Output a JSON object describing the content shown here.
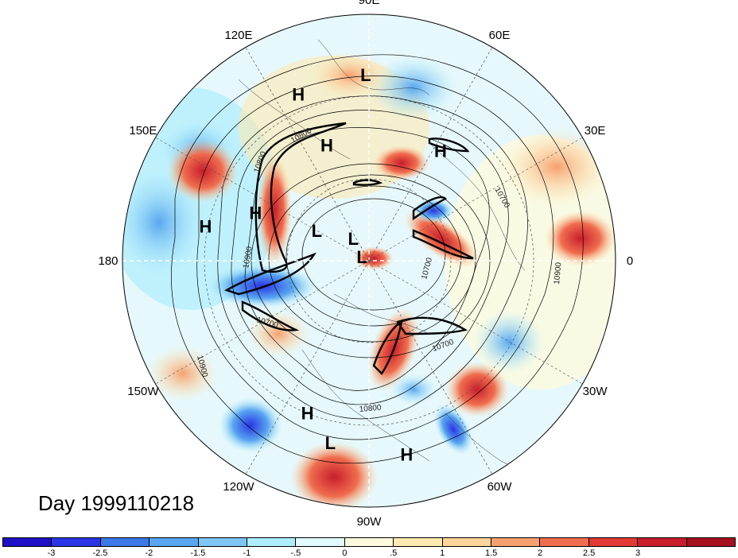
{
  "title": "Day 1999110218",
  "longitude_labels": [
    {
      "text": "90E",
      "lon": 90
    },
    {
      "text": "60E",
      "lon": 60
    },
    {
      "text": "30E",
      "lon": 30
    },
    {
      "text": "0",
      "lon": 0
    },
    {
      "text": "30W",
      "lon": -30
    },
    {
      "text": "60W",
      "lon": -60
    },
    {
      "text": "90W",
      "lon": -90
    },
    {
      "text": "120W",
      "lon": -120
    },
    {
      "text": "150W",
      "lon": -150
    },
    {
      "text": "180",
      "lon": 180
    },
    {
      "text": "150E",
      "lon": 150
    },
    {
      "text": "120E",
      "lon": 120
    }
  ],
  "pressure_centers": [
    {
      "type": "L",
      "lon": 91,
      "lat": 22
    },
    {
      "type": "H",
      "lon": 113,
      "lat": 24
    },
    {
      "type": "H",
      "lon": 110,
      "lat": 45
    },
    {
      "type": "H",
      "lon": 57,
      "lat": 42
    },
    {
      "type": "H",
      "lon": 168,
      "lat": 29
    },
    {
      "type": "H",
      "lon": 157,
      "lat": 45
    },
    {
      "type": "L",
      "lon": 150,
      "lat": 68
    },
    {
      "type": "L",
      "lon": 125,
      "lat": 80
    },
    {
      "type": "L",
      "lon": 150,
      "lat": 87
    },
    {
      "type": "H",
      "lon": -112,
      "lat": 30
    },
    {
      "type": "L",
      "lon": -102,
      "lat": 22
    },
    {
      "type": "H",
      "lon": -79,
      "lat": 18
    }
  ],
  "contour_labels": [
    "10800",
    "10800",
    "10700",
    "10700",
    "10900",
    "10700",
    "10800",
    "10700",
    "10900",
    "10900"
  ],
  "colorbar": {
    "colors": [
      "#1f10c7",
      "#2a35e6",
      "#3b7ae6",
      "#58a6f0",
      "#7ec6f5",
      "#aeeefc",
      "#e0fafe",
      "#fefadf",
      "#feeab1",
      "#fdd49a",
      "#f7a06f",
      "#f06d4e",
      "#e23a35",
      "#c81e2c",
      "#a6101f"
    ],
    "labels": [
      "-3",
      "-2.5",
      "-2",
      "-1.5",
      "-1",
      "-.5",
      "0",
      ".5",
      "1",
      "1.5",
      "2",
      "2.5",
      "3"
    ]
  }
}
